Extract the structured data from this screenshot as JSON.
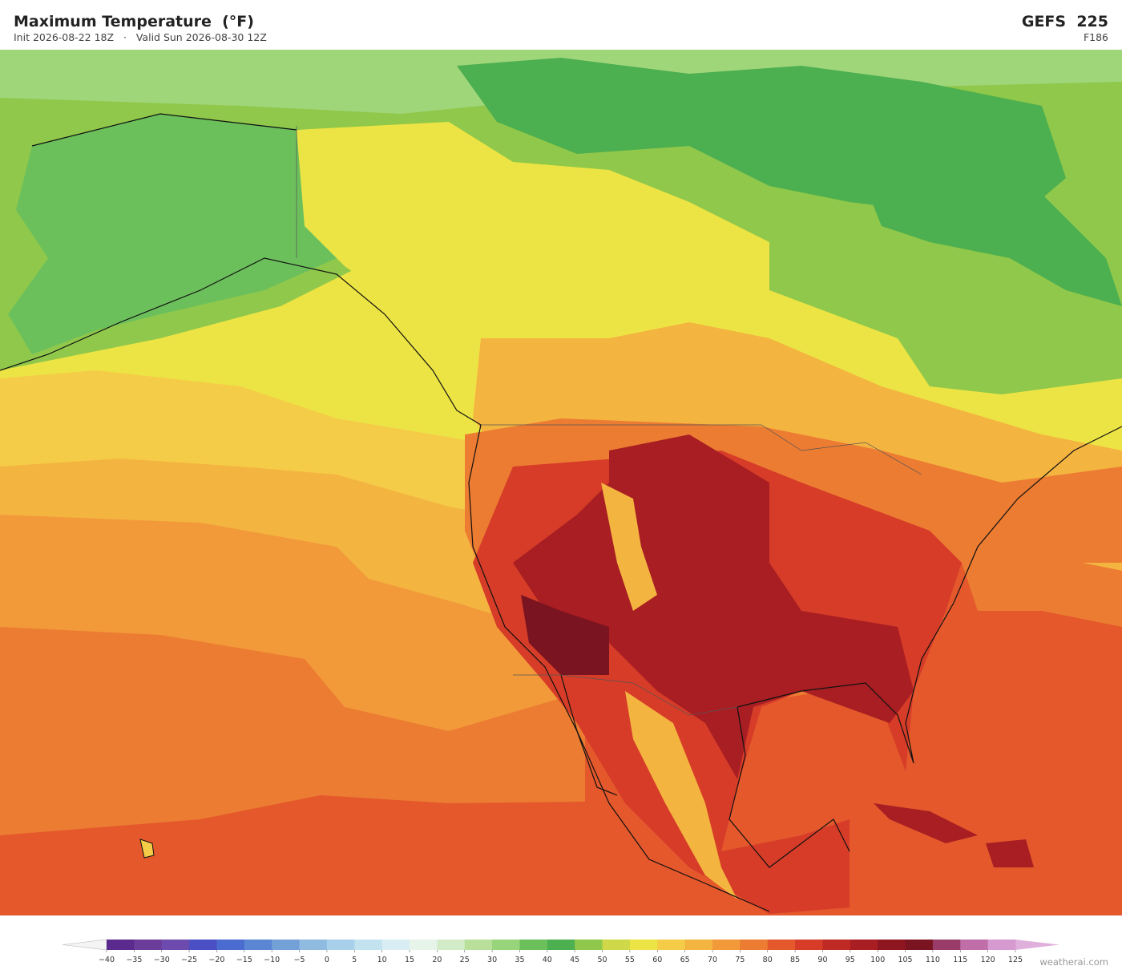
{
  "header": {
    "title": "Maximum Temperature  (°F)",
    "subtitle": "Init 2026-08-22 18Z   ·   Valid Sun 2026-08-30 12Z",
    "model": "GEFS  225",
    "forecast_hour": "F186"
  },
  "colorbar": {
    "ticks": [
      {
        "value": -40,
        "label": "−40"
      },
      {
        "value": -35,
        "label": "−35"
      },
      {
        "value": -30,
        "label": "−30"
      },
      {
        "value": -25,
        "label": "−25"
      },
      {
        "value": -20,
        "label": "−20"
      },
      {
        "value": -15,
        "label": "−15"
      },
      {
        "value": -10,
        "label": "−10"
      },
      {
        "value": -5,
        "label": "−5"
      },
      0,
      5,
      10,
      15,
      20,
      25,
      30,
      35,
      40,
      45,
      50,
      55,
      60,
      65,
      70,
      75,
      80,
      85,
      90,
      95,
      100,
      105,
      110,
      115,
      120,
      125
    ],
    "colors": [
      "#5b2a8e",
      "#6a3d9a",
      "#6d4aae",
      "#4b4fc4",
      "#4a6bd0",
      "#5b86d4",
      "#74a0d8",
      "#8fbbe0",
      "#a8d0ea",
      "#c2e2f0",
      "#d9eef4",
      "#e6f4ea",
      "#d3ecc8",
      "#b8e09a",
      "#98d47a",
      "#6cc05c",
      "#4caf50",
      "#8fc84a",
      "#cfd848",
      "#ece444",
      "#f5cc48",
      "#f4b440",
      "#f29a3a",
      "#ec7c32",
      "#e4582c",
      "#d63c28",
      "#c02a24",
      "#a81e22",
      "#8e1620",
      "#7a1420",
      "#9a3c6a",
      "#c06ea8",
      "#d69ad0"
    ],
    "under_color": "#f4f4f4",
    "over_color": "#e0b0dc"
  },
  "credit": "weatherai.com"
}
